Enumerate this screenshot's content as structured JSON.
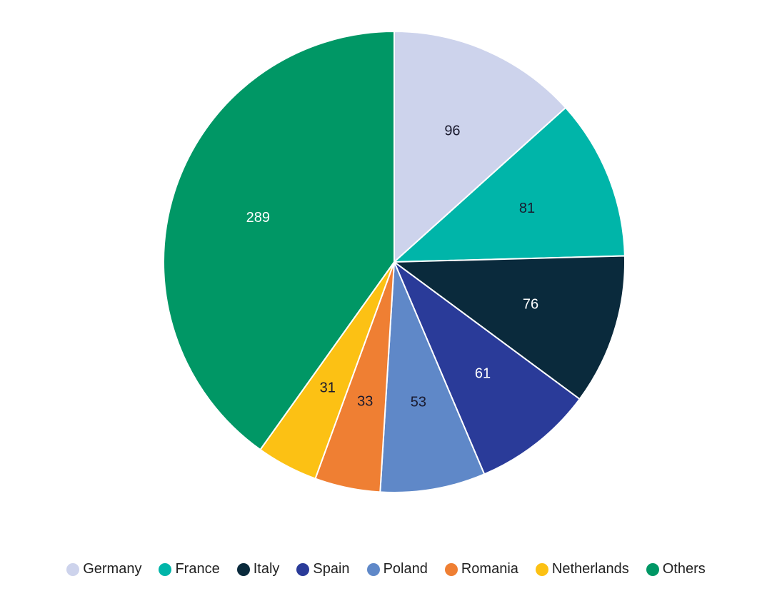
{
  "chart_data": {
    "type": "pie",
    "categories": [
      "Germany",
      "France",
      "Italy",
      "Spain",
      "Poland",
      "Romania",
      "Netherlands",
      "Others"
    ],
    "values": [
      96,
      81,
      76,
      61,
      53,
      33,
      31,
      289
    ],
    "colors": [
      "#cdd3ec",
      "#00b5a9",
      "#0a2a3c",
      "#2a3b99",
      "#5f88c8",
      "#ef7f33",
      "#fcc114",
      "#009765"
    ],
    "legend": "bottom"
  }
}
